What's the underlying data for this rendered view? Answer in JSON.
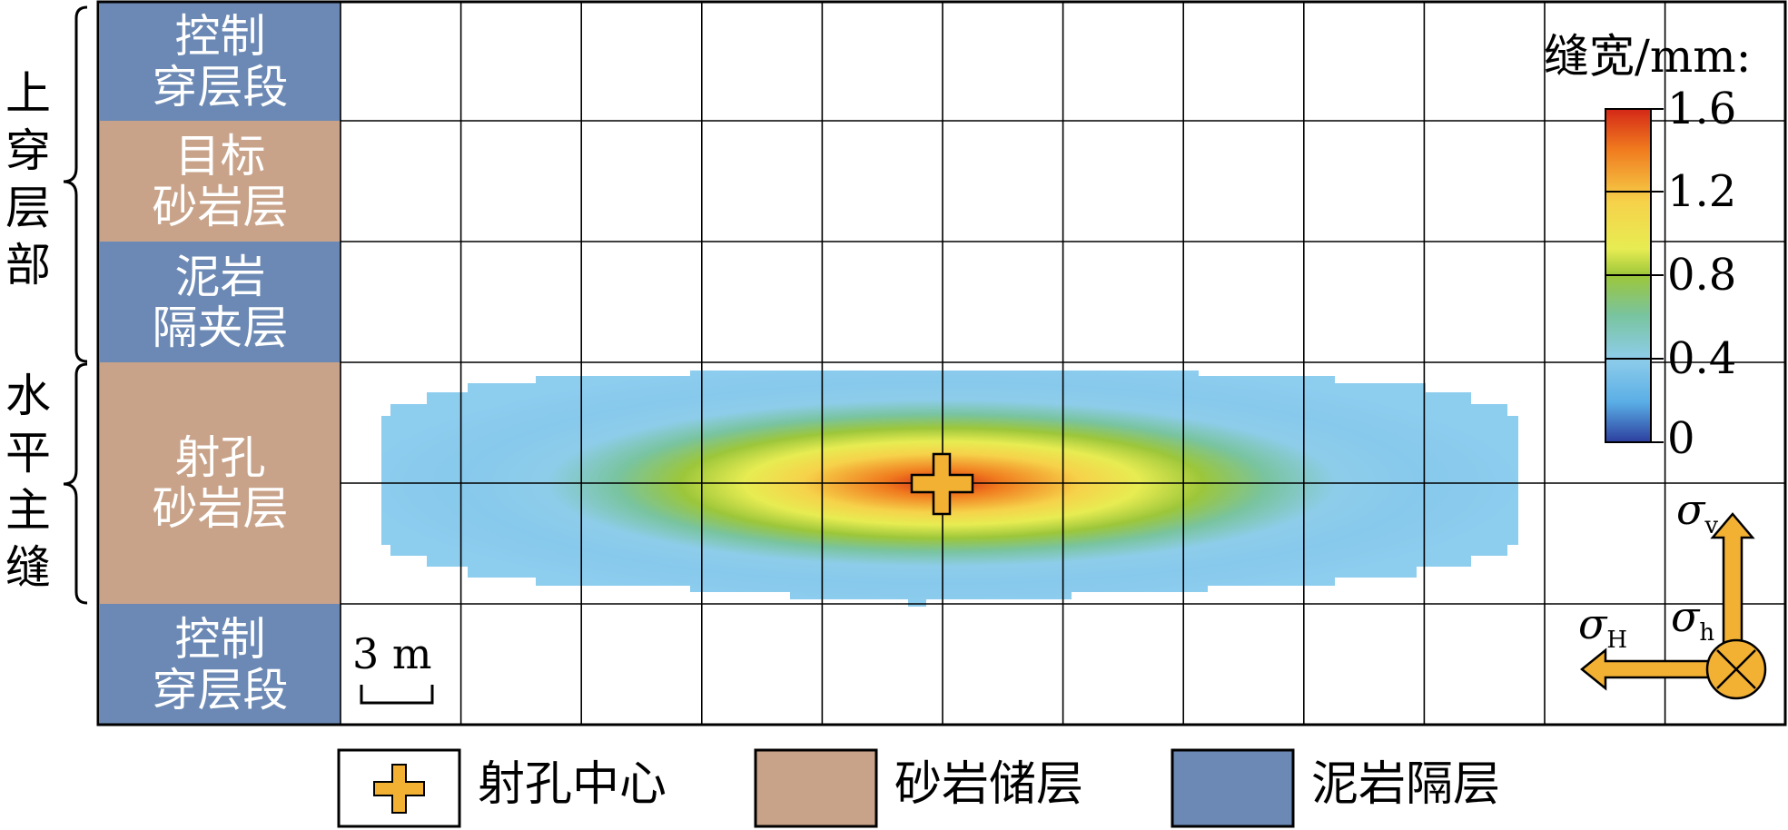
{
  "brace_labels": [
    {
      "id": "upper",
      "text": "上\n穿\n层\n部"
    },
    {
      "id": "main",
      "text": "水\n平\n主\n缝"
    }
  ],
  "layers": [
    {
      "label": "控制\n穿层段",
      "kind": "mudstone",
      "color": "#6b89b4"
    },
    {
      "label": "目标\n砂岩层",
      "kind": "sandstone",
      "color": "#c8a38a"
    },
    {
      "label": "泥岩\n隔夹层",
      "kind": "mudstone",
      "color": "#6b89b4"
    },
    {
      "label": "射孔\n砂岩层",
      "kind": "sandstone",
      "color": "#c8a38a"
    },
    {
      "label": "控制\n穿层段",
      "kind": "mudstone",
      "color": "#6b89b4"
    }
  ],
  "colorbar": {
    "title": "缝宽/mm:",
    "ticks": [
      "1.6",
      "1.2",
      "0.8",
      "0.4",
      "0"
    ],
    "colors": [
      "#d42818",
      "#f07a1e",
      "#f6d24a",
      "#e7ec52",
      "#9cc63a",
      "#79c4a0",
      "#8ecdea",
      "#5aaee6",
      "#2c3e9e"
    ]
  },
  "scale_bar": {
    "label": "3 m"
  },
  "stress": {
    "vertical": {
      "symbol": "σ",
      "sub": "v"
    },
    "min_horizontal": {
      "symbol": "σ",
      "sub": "h"
    },
    "max_horizontal": {
      "symbol": "σ",
      "sub": "H"
    },
    "arrow_color": "#f2b133"
  },
  "perforation_marker_color": "#f2b133",
  "legend": [
    {
      "label": "射孔中心",
      "icon": "perforation-cross-icon"
    },
    {
      "label": "砂岩储层",
      "swatch": "#c8a38a"
    },
    {
      "label": "泥岩隔层",
      "swatch": "#6b89b4"
    }
  ]
}
